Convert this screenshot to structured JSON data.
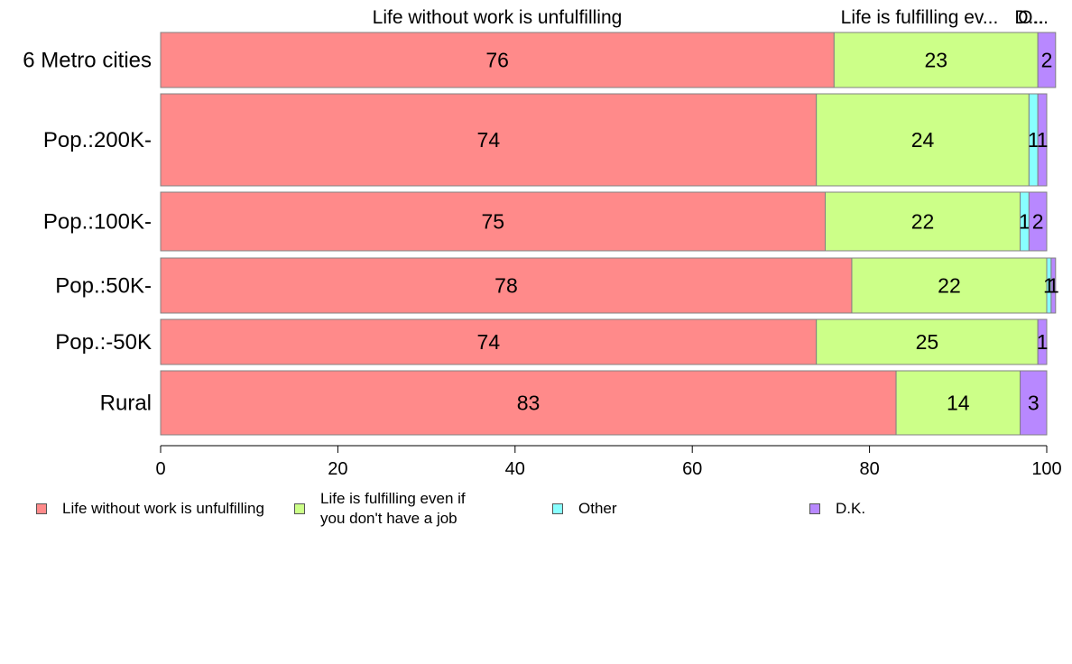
{
  "chart_data": {
    "type": "bar",
    "orientation": "horizontal",
    "stacked": true,
    "categories": [
      "6 Metro cities",
      "Pop.:200K-",
      "Pop.:100K-",
      "Pop.:50K-",
      "Pop.:-50K",
      "Rural"
    ],
    "series": [
      {
        "name": "Life without work is unfulfilling",
        "color": "#ff8a8a",
        "values": [
          76,
          74,
          75,
          78,
          74,
          83
        ]
      },
      {
        "name": "Life is fulfilling even if you don't have a job",
        "color": "#ccff88",
        "values": [
          23,
          24,
          22,
          22,
          25,
          14
        ]
      },
      {
        "name": "Other",
        "color": "#88ffff",
        "values": [
          0,
          1,
          1,
          0.5,
          0,
          0
        ]
      },
      {
        "name": "D.K.",
        "color": "#b888ff",
        "values": [
          2,
          1,
          2,
          0.5,
          1,
          3
        ]
      }
    ],
    "value_labels": [
      [
        "76",
        "23",
        "",
        "2"
      ],
      [
        "74",
        "24",
        "1",
        "1"
      ],
      [
        "75",
        "22",
        "1",
        "2"
      ],
      [
        "78",
        "22",
        "1",
        "1"
      ],
      [
        "74",
        "25",
        "",
        "1"
      ],
      [
        "83",
        "14",
        "",
        "3"
      ]
    ],
    "top_labels": [
      "Life without work is unfulfilling",
      "Life is fulfilling ev...",
      "O...",
      "D..."
    ],
    "xlim": [
      0,
      100
    ],
    "xticks": [
      "0",
      "20",
      "40",
      "60",
      "80",
      "100"
    ],
    "legend_position": "bottom",
    "grid": false
  },
  "legend": {
    "items": [
      {
        "label": "Life without work is unfulfilling",
        "color": "#ff8a8a"
      },
      {
        "label": "Life is fulfilling even if\nyou don't have a job",
        "color": "#ccff88"
      },
      {
        "label": "Other",
        "color": "#88ffff"
      },
      {
        "label": "D.K.",
        "color": "#b888ff"
      }
    ]
  }
}
